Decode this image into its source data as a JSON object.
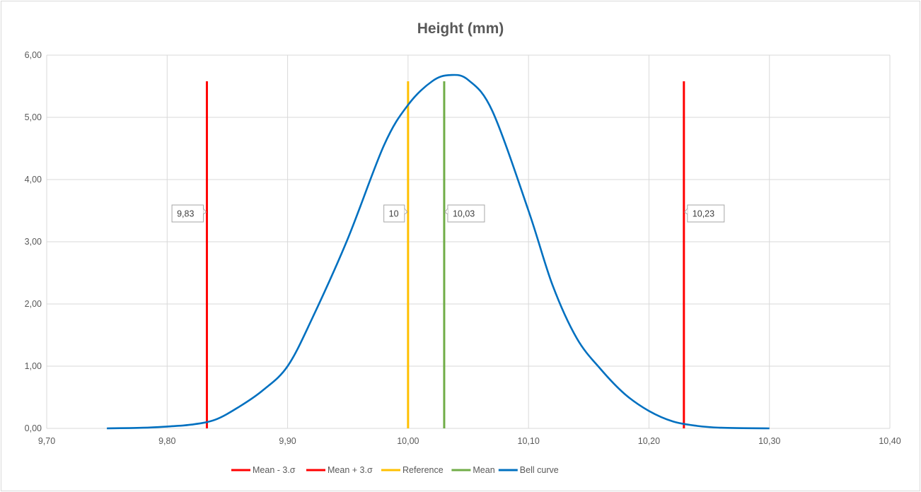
{
  "chart_data": {
    "type": "line",
    "title": "Height (mm)",
    "xlabel": "",
    "ylabel": "",
    "xlim": [
      9.7,
      10.4
    ],
    "ylim": [
      0,
      6
    ],
    "x_ticks": [
      "9,70",
      "9,80",
      "9,90",
      "10,00",
      "10,10",
      "10,20",
      "10,30",
      "10,40"
    ],
    "y_ticks": [
      "0,00",
      "1,00",
      "2,00",
      "3,00",
      "4,00",
      "5,00",
      "6,00"
    ],
    "grid": true,
    "legend_position": "bottom",
    "series": [
      {
        "name": "Mean - 3.σ",
        "color": "#ff0000",
        "x": [
          9.833,
          9.833
        ],
        "y": [
          0,
          5.58
        ],
        "label": "9,83"
      },
      {
        "name": "Mean + 3.σ",
        "color": "#ff0000",
        "x": [
          10.229,
          10.229
        ],
        "y": [
          0,
          5.58
        ],
        "label": "10,23"
      },
      {
        "name": "Reference",
        "color": "#ffc000",
        "x": [
          10.0,
          10.0
        ],
        "y": [
          0,
          5.58
        ],
        "label": "10"
      },
      {
        "name": "Mean",
        "color": "#70ad47",
        "x": [
          10.03,
          10.03
        ],
        "y": [
          0,
          5.58
        ],
        "label": "10,03"
      },
      {
        "name": "Bell curve",
        "color": "#0070c0",
        "x": [
          9.75,
          9.78,
          9.8,
          9.82,
          9.84,
          9.86,
          9.88,
          9.9,
          9.92,
          9.95,
          9.98,
          10.0,
          10.02,
          10.035,
          10.05,
          10.07,
          10.1,
          10.12,
          10.14,
          10.16,
          10.18,
          10.2,
          10.22,
          10.24,
          10.26,
          10.3
        ],
        "y": [
          0.0,
          0.01,
          0.03,
          0.06,
          0.14,
          0.35,
          0.62,
          1.0,
          1.75,
          3.05,
          4.55,
          5.2,
          5.58,
          5.68,
          5.6,
          5.1,
          3.5,
          2.3,
          1.45,
          0.95,
          0.55,
          0.28,
          0.11,
          0.04,
          0.01,
          0.0
        ]
      }
    ]
  }
}
